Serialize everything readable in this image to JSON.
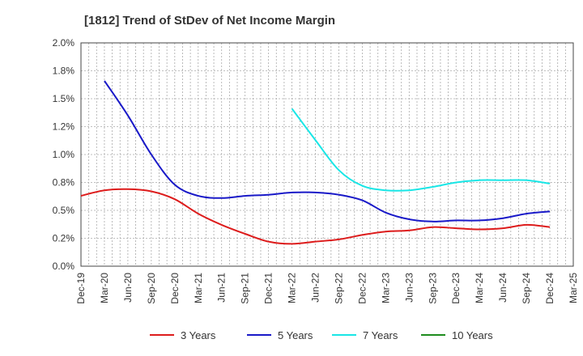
{
  "chart_data": {
    "type": "line",
    "title": "[1812]  Trend of StDev of Net Income Margin",
    "xlabel": "",
    "ylabel": "",
    "x": [
      "Dec-19",
      "Mar-20",
      "Jun-20",
      "Sep-20",
      "Dec-20",
      "Mar-21",
      "Jun-21",
      "Sep-21",
      "Dec-21",
      "Mar-22",
      "Jun-22",
      "Sep-22",
      "Dec-22",
      "Mar-23",
      "Jun-23",
      "Sep-23",
      "Dec-23",
      "Mar-24",
      "Jun-24",
      "Sep-24",
      "Dec-24",
      "Mar-25"
    ],
    "y_ticks": [
      "0.0%",
      "0.2%",
      "0.5%",
      "0.8%",
      "1.0%",
      "1.2%",
      "1.5%",
      "1.8%",
      "2.0%"
    ],
    "ylim": [
      0,
      2.0
    ],
    "grid": true,
    "legend_position": "bottom",
    "series": [
      {
        "name": "3 Years",
        "color": "#dd1c1c",
        "values": [
          0.63,
          0.68,
          0.69,
          0.67,
          0.6,
          0.47,
          0.37,
          0.29,
          0.22,
          0.2,
          0.22,
          0.24,
          0.28,
          0.31,
          0.32,
          0.35,
          0.34,
          0.33,
          0.34,
          0.37,
          0.35,
          null
        ]
      },
      {
        "name": "5 Years",
        "color": "#1919c8",
        "values": [
          null,
          1.66,
          1.35,
          1.0,
          0.73,
          0.63,
          0.61,
          0.63,
          0.64,
          0.66,
          0.66,
          0.64,
          0.59,
          0.48,
          0.42,
          0.4,
          0.41,
          0.41,
          0.43,
          0.47,
          0.49,
          null
        ]
      },
      {
        "name": "7 Years",
        "color": "#19e6e6",
        "values": [
          null,
          null,
          null,
          null,
          null,
          null,
          null,
          null,
          null,
          1.41,
          1.13,
          0.86,
          0.72,
          0.68,
          0.68,
          0.71,
          0.75,
          0.77,
          0.77,
          0.77,
          0.74,
          null
        ]
      },
      {
        "name": "10 Years",
        "color": "#1e8c1e",
        "values": [
          null,
          null,
          null,
          null,
          null,
          null,
          null,
          null,
          null,
          null,
          null,
          null,
          null,
          null,
          null,
          null,
          null,
          null,
          null,
          null,
          null,
          null
        ]
      }
    ]
  }
}
